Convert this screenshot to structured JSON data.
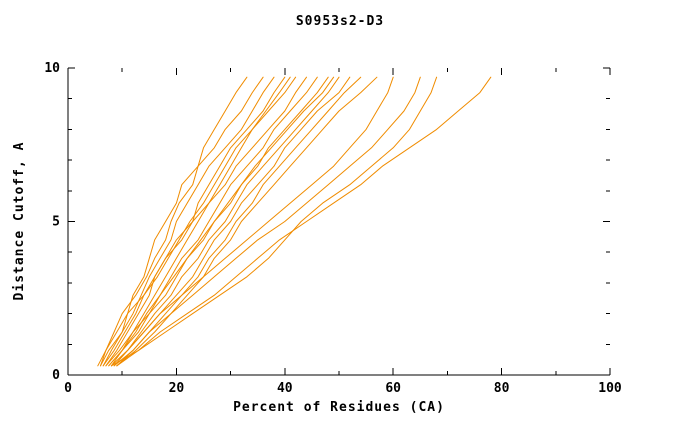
{
  "chart_data": {
    "type": "line",
    "title": "S0953s2-D3",
    "xlabel": "Percent of Residues (CA)",
    "ylabel": "Distance Cutoff, A",
    "xlim": [
      0,
      100
    ],
    "ylim": [
      0,
      10
    ],
    "x_ticks": [
      0,
      20,
      40,
      60,
      80,
      100
    ],
    "x_minor_ticks": [
      10,
      30,
      50,
      70,
      90
    ],
    "y_ticks": [
      0,
      5,
      10
    ],
    "y_minor_ticks": [
      1,
      2,
      3,
      4,
      6,
      7,
      8,
      9
    ],
    "grid": false,
    "legend": "none",
    "line_color": "#f08c00",
    "axis_color": "#000000",
    "y_grid": [
      0.3,
      0.8,
      1.4,
      2.0,
      2.6,
      3.2,
      3.8,
      4.4,
      5.0,
      5.6,
      6.2,
      6.8,
      7.4,
      8.0,
      8.6,
      9.2,
      9.7
    ],
    "series": [
      {
        "x": [
          5.5,
          7,
          9,
          11,
          12,
          14,
          15,
          16,
          18,
          20,
          21,
          24,
          25,
          27,
          29,
          31,
          33
        ]
      },
      {
        "x": [
          6,
          7,
          8.5,
          10,
          12.5,
          14.5,
          16,
          18,
          19,
          20.5,
          23,
          24,
          27,
          29,
          32,
          34,
          36
        ]
      },
      {
        "x": [
          6,
          7.5,
          10,
          12,
          13.5,
          15,
          17,
          19,
          20,
          22,
          24,
          26,
          29,
          32,
          34,
          36,
          38
        ]
      },
      {
        "x": [
          6.5,
          8,
          10,
          11,
          14,
          16,
          18,
          20,
          23,
          24,
          26,
          28,
          30,
          33,
          36,
          38,
          40
        ]
      },
      {
        "x": [
          7,
          9,
          11,
          13,
          15,
          16,
          18,
          21,
          23,
          26,
          28,
          30,
          32,
          34,
          37,
          40,
          42
        ]
      },
      {
        "x": [
          7,
          9.5,
          12,
          14,
          16,
          18,
          20,
          22,
          24,
          26,
          29,
          31,
          34,
          37,
          40,
          42,
          44
        ]
      },
      {
        "x": [
          7.5,
          10,
          12,
          15,
          17,
          19,
          21,
          24,
          26,
          28,
          30,
          33,
          36,
          38,
          41,
          44,
          46
        ]
      },
      {
        "x": [
          8,
          10,
          13,
          15,
          18,
          20,
          22,
          25,
          27,
          30,
          32,
          35,
          37,
          40,
          43,
          46,
          48
        ]
      },
      {
        "x": [
          8,
          11,
          13.5,
          16,
          19,
          21,
          24,
          26,
          29,
          31,
          33,
          36,
          39,
          42,
          45,
          48,
          50
        ]
      },
      {
        "x": [
          8.5,
          11,
          14,
          17,
          20,
          23,
          25,
          27,
          30,
          32,
          35,
          38,
          40,
          43,
          46,
          50,
          52
        ]
      },
      {
        "x": [
          9,
          12,
          15,
          18,
          21,
          24,
          26,
          29,
          31,
          34,
          36,
          39,
          42,
          45,
          48,
          51,
          54
        ]
      },
      {
        "x": [
          9,
          12.5,
          16,
          19,
          22,
          25,
          27,
          30,
          32,
          35,
          38,
          41,
          44,
          47,
          50,
          54,
          57
        ]
      },
      {
        "x": [
          8,
          13,
          18,
          23,
          28,
          33,
          37,
          40,
          43,
          47,
          52,
          56,
          60,
          63,
          65,
          67,
          68
        ]
      },
      {
        "x": [
          9,
          13,
          17,
          22,
          27,
          31,
          35,
          39,
          44,
          49,
          54,
          58,
          63,
          68,
          72,
          76,
          78
        ]
      },
      {
        "x": [
          8,
          11,
          14,
          17,
          21,
          25,
          29,
          33,
          37,
          41,
          45,
          49,
          52,
          55,
          57,
          59,
          60
        ]
      },
      {
        "x": [
          8.5,
          12,
          15,
          19,
          23,
          27,
          31,
          35,
          40,
          44,
          48,
          52,
          56,
          59,
          62,
          64,
          65
        ]
      },
      {
        "x": [
          6.5,
          8.5,
          10.5,
          12.5,
          14,
          16.5,
          18.5,
          20.5,
          22.5,
          25,
          27,
          29,
          31,
          34,
          36.5,
          39,
          41
        ]
      },
      {
        "x": [
          7.5,
          10,
          12.5,
          14.5,
          17,
          19.5,
          22,
          24.5,
          27,
          29.5,
          32,
          34.5,
          37.5,
          40.5,
          43.5,
          47,
          49
        ]
      }
    ]
  }
}
